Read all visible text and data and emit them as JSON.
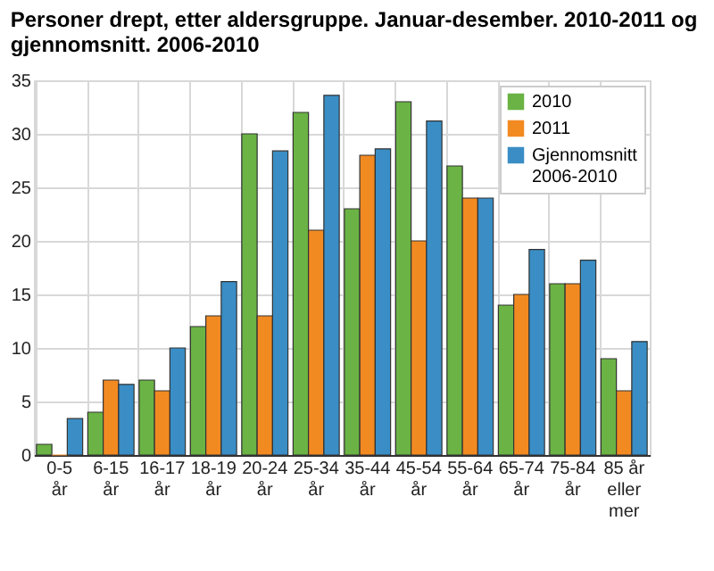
{
  "chart_data": {
    "type": "bar",
    "title": [
      "Personer drept, etter aldersgruppe. Januar-desember. 2010-2011 og",
      "gjennomsnitt. 2006-2010"
    ],
    "categories": [
      "0-5\når",
      "6-15\når",
      "16-17\når",
      "18-19\når",
      "20-24\når",
      "25-34\når",
      "35-44\når",
      "45-54\når",
      "55-64\når",
      "65-74\når",
      "75-84\når",
      "85 år\neller\nmer"
    ],
    "series": [
      {
        "name": "2010",
        "color": "#6ab344",
        "values": [
          1,
          4,
          7,
          12,
          30,
          32,
          23,
          33,
          27,
          14,
          16,
          9
        ]
      },
      {
        "name": "2011",
        "color": "#f28a22",
        "values": [
          0,
          7,
          6,
          13,
          13,
          21,
          28,
          20,
          24,
          15,
          16,
          6
        ]
      },
      {
        "name": "Gjennomsnitt\n2006-2010",
        "color": "#3a8ec5",
        "values": [
          3.4,
          6.6,
          10,
          16.2,
          28.4,
          33.6,
          28.6,
          31.2,
          24,
          19.2,
          18.2,
          10.6
        ]
      }
    ],
    "ylim": [
      0,
      35
    ],
    "yticks": [
      0,
      5,
      10,
      15,
      20,
      25,
      30,
      35
    ],
    "grid": true,
    "legend": "top right"
  }
}
